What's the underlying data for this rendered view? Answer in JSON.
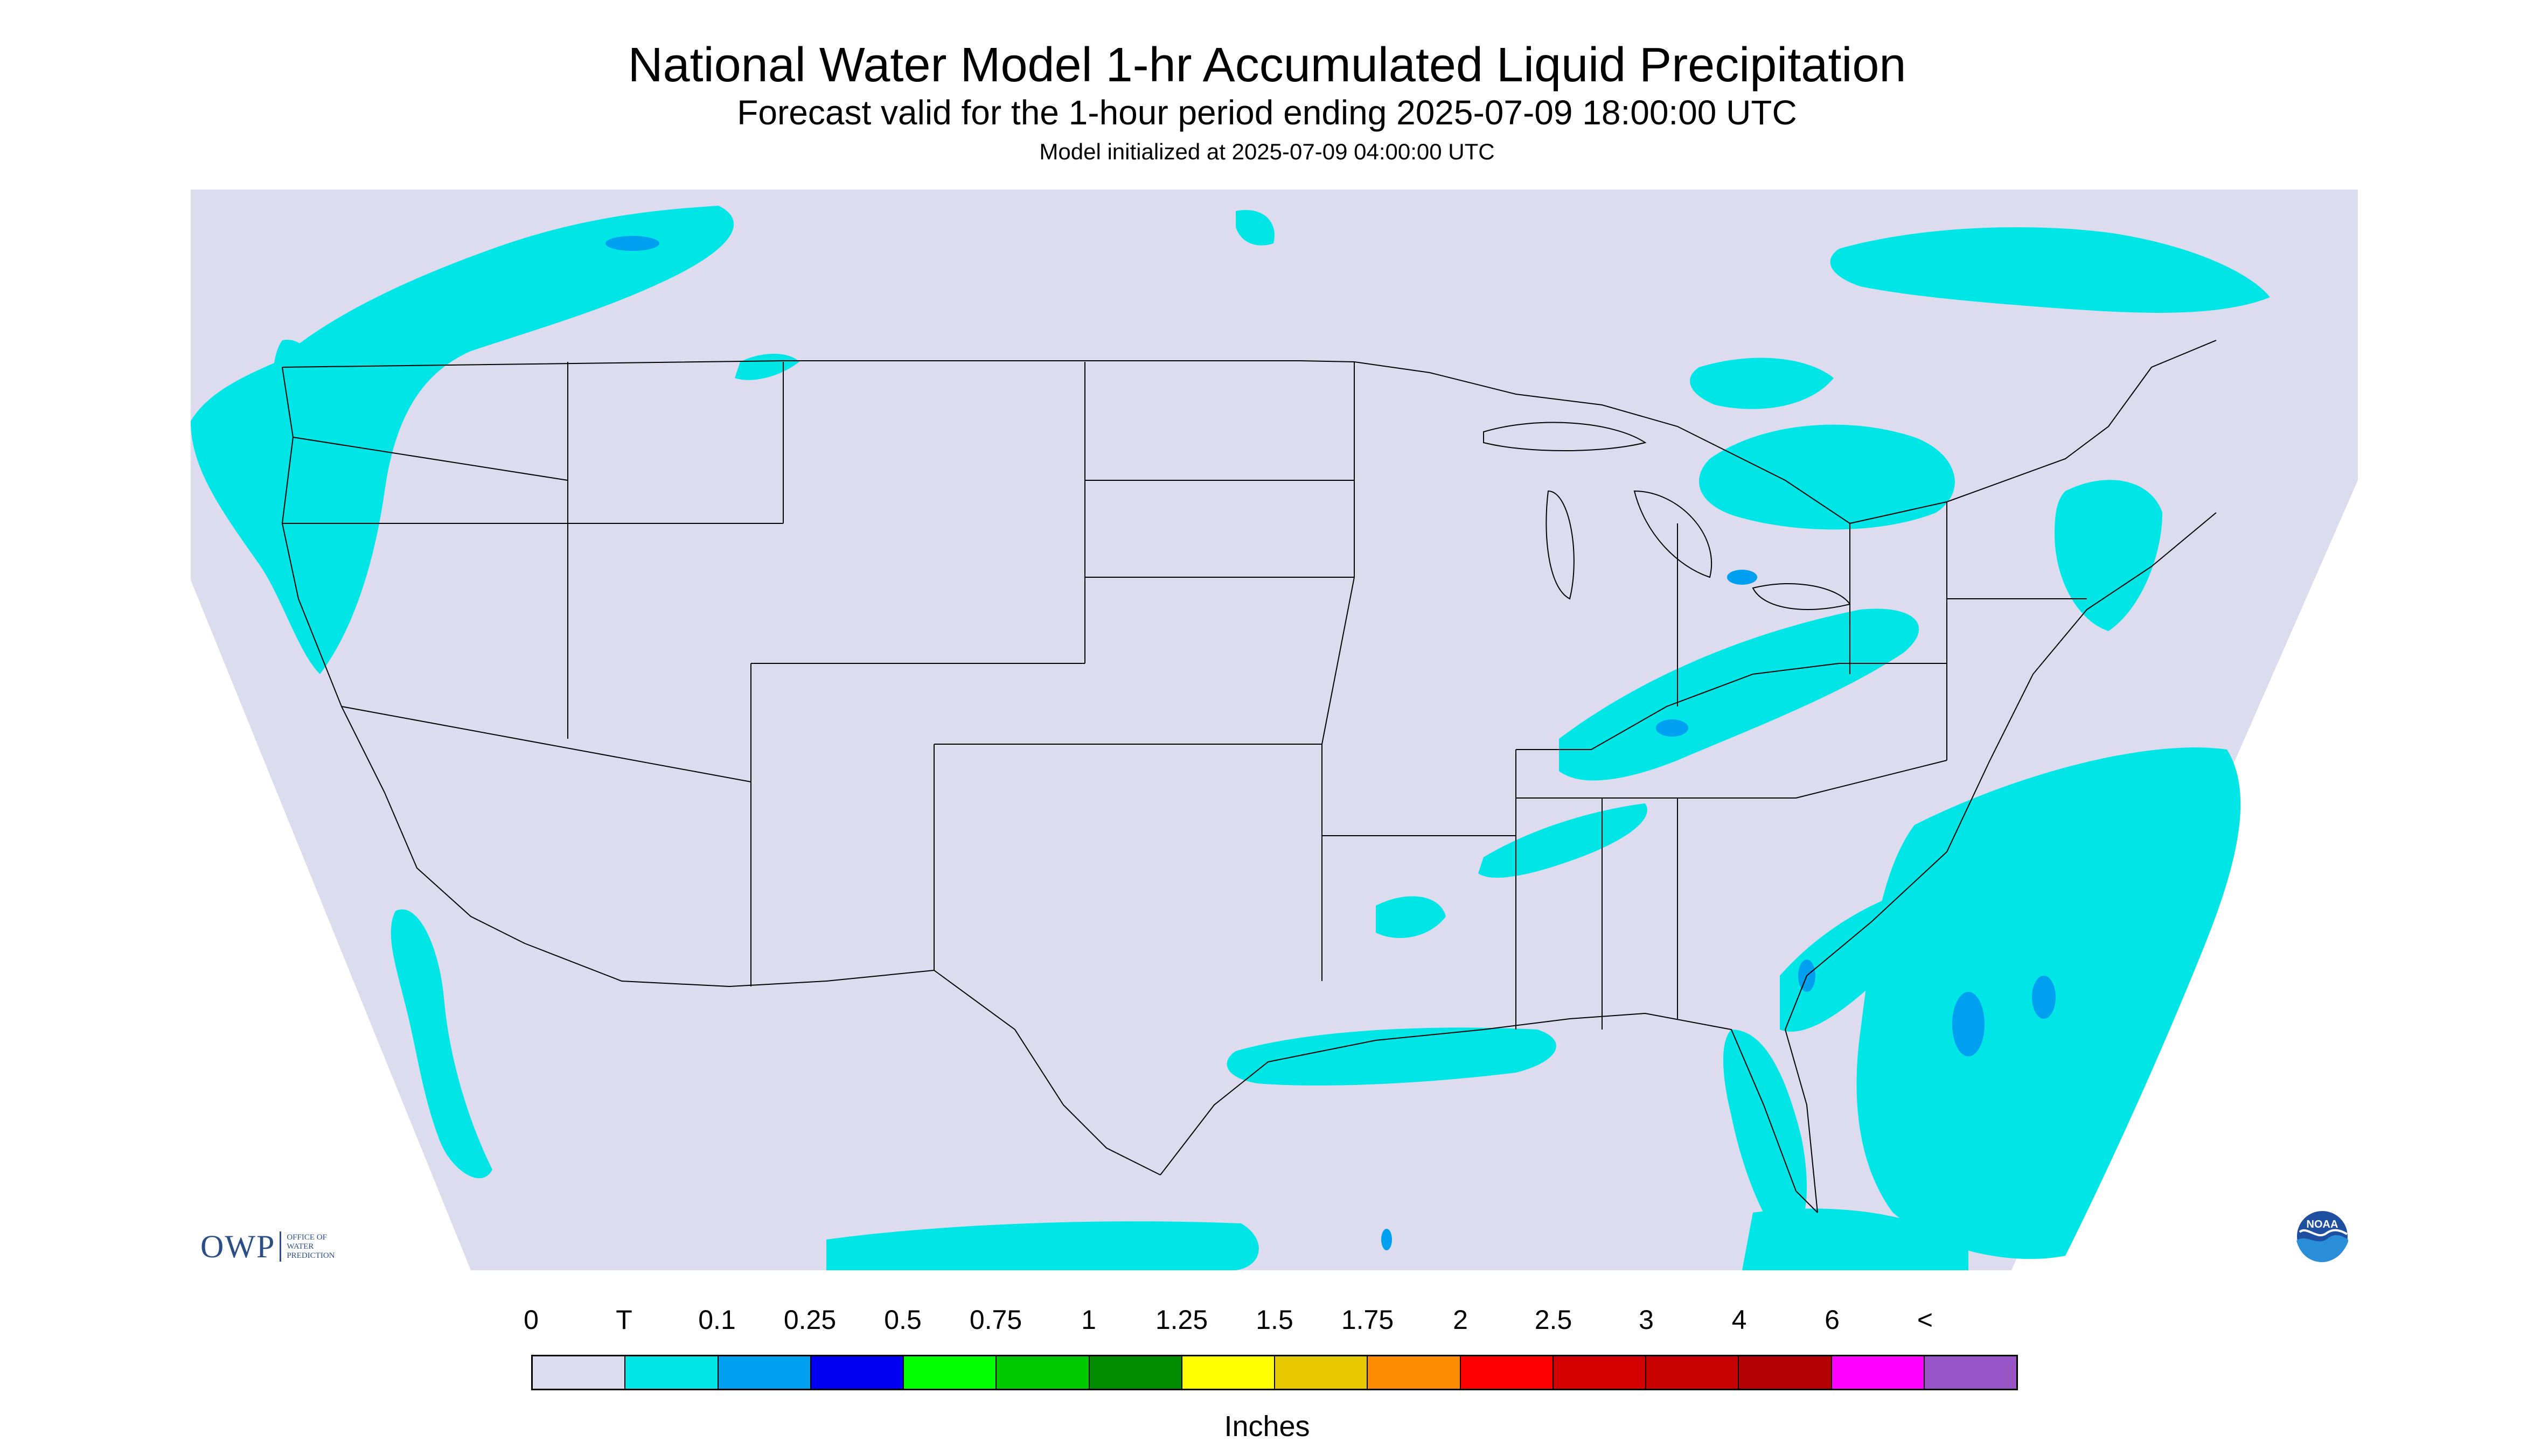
{
  "header": {
    "title": "National Water Model 1-hr Accumulated Liquid Precipitation",
    "subtitle": "Forecast valid for the 1-hour period ending 2025-07-09 18:00:00 UTC",
    "init_line": "Model initialized at 2025-07-09 04:00:00 UTC"
  },
  "legend": {
    "labels": [
      "0",
      "T",
      "0.1",
      "0.25",
      "0.5",
      "0.75",
      "1",
      "1.25",
      "1.5",
      "1.75",
      "2",
      "2.5",
      "3",
      "4",
      "6",
      "<"
    ],
    "colors": [
      "#dcdcee",
      "#00e6e6",
      "#00a0f0",
      "#0000f0",
      "#00ff00",
      "#00c800",
      "#008c00",
      "#ffff00",
      "#e6c800",
      "#ff8c00",
      "#ff0000",
      "#d20000",
      "#c80000",
      "#b40000",
      "#ff00ff",
      "#9955c8"
    ],
    "units": "Inches"
  },
  "logos": {
    "owp_text": "OWP",
    "owp_sub": [
      "OFFICE OF",
      "WATER",
      "PREDICTION"
    ],
    "noaa_text": "NOAA"
  },
  "map": {
    "background_color": "#dcdcee",
    "precip_color_light": "#00e6e6",
    "precip_color_mid": "#00a0f0",
    "boundary_color": "#000000"
  }
}
